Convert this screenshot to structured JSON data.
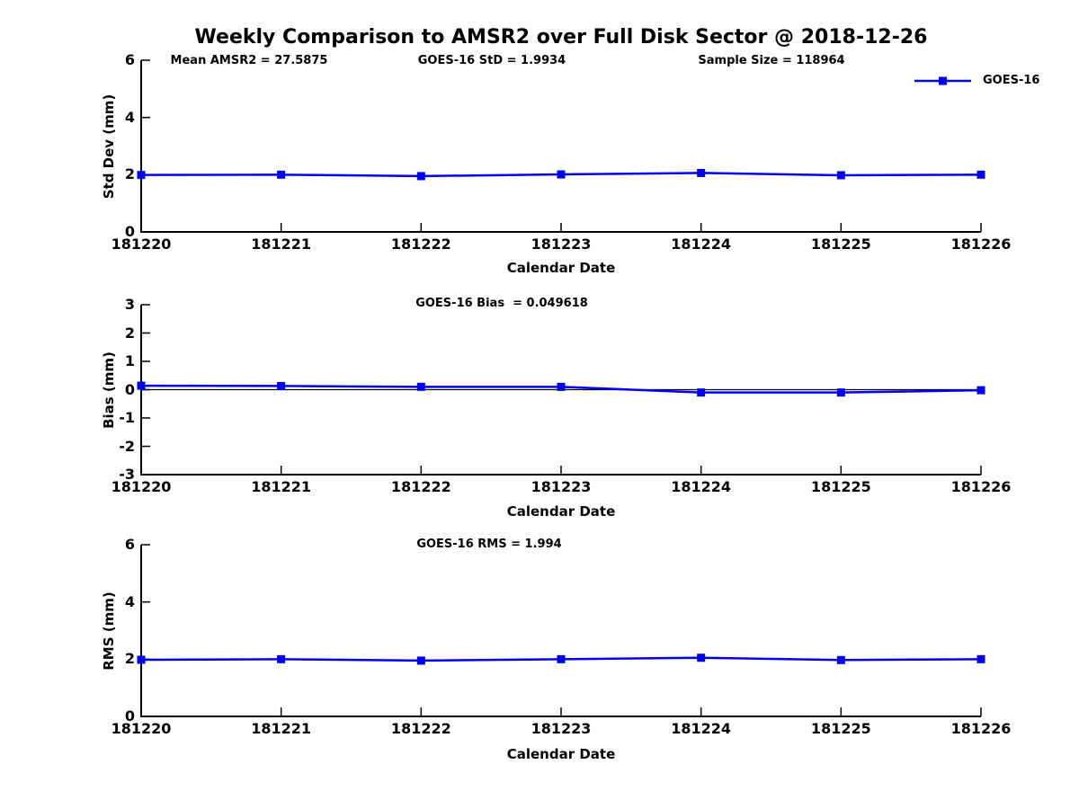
{
  "title": "Weekly Comparison to AMSR2 over Full Disk Sector @ 2018-12-26",
  "colors": {
    "line_blue": "#0000EE",
    "axis_black": "#000000",
    "background": "#FFFFFF"
  },
  "legend": {
    "label": "GOES-16",
    "position": "top-right"
  },
  "chart_data": [
    {
      "type": "line",
      "name": "std-dev-subplot",
      "title": "",
      "ylabel": "Std Dev (mm)",
      "xlabel": "Calendar Date",
      "categories": [
        "181220",
        "181221",
        "181222",
        "181223",
        "181224",
        "181225",
        "181226"
      ],
      "series": [
        {
          "name": "GOES-16",
          "values": [
            1.99,
            2.0,
            1.95,
            2.01,
            2.06,
            1.98,
            2.0
          ]
        }
      ],
      "ylim": [
        0,
        6
      ],
      "yticks": [
        0,
        2,
        4,
        6
      ],
      "grid": false,
      "zero_line": false,
      "annotations": [
        "Mean AMSR2 = 27.5875",
        "GOES-16 StD = 1.9934",
        "Sample Size = 118964"
      ]
    },
    {
      "type": "line",
      "name": "bias-subplot",
      "title": "",
      "ylabel": "Bias (mm)",
      "xlabel": "Calendar Date",
      "categories": [
        "181220",
        "181221",
        "181222",
        "181223",
        "181224",
        "181225",
        "181226"
      ],
      "series": [
        {
          "name": "GOES-16",
          "values": [
            0.14,
            0.13,
            0.1,
            0.1,
            -0.1,
            -0.1,
            -0.02
          ]
        }
      ],
      "ylim": [
        -3,
        3
      ],
      "yticks": [
        -3,
        -2,
        -1,
        0,
        1,
        2,
        3
      ],
      "grid": false,
      "zero_line": true,
      "annotations": [
        "GOES-16 Bias  = 0.049618"
      ]
    },
    {
      "type": "line",
      "name": "rms-subplot",
      "title": "",
      "ylabel": "RMS (mm)",
      "xlabel": "Calendar Date",
      "categories": [
        "181220",
        "181221",
        "181222",
        "181223",
        "181224",
        "181225",
        "181226"
      ],
      "series": [
        {
          "name": "GOES-16",
          "values": [
            1.98,
            2.0,
            1.95,
            2.0,
            2.05,
            1.97,
            2.0
          ]
        }
      ],
      "ylim": [
        0,
        6
      ],
      "yticks": [
        0,
        2,
        4,
        6
      ],
      "grid": false,
      "zero_line": false,
      "annotations": [
        "GOES-16 RMS = 1.994"
      ]
    }
  ]
}
